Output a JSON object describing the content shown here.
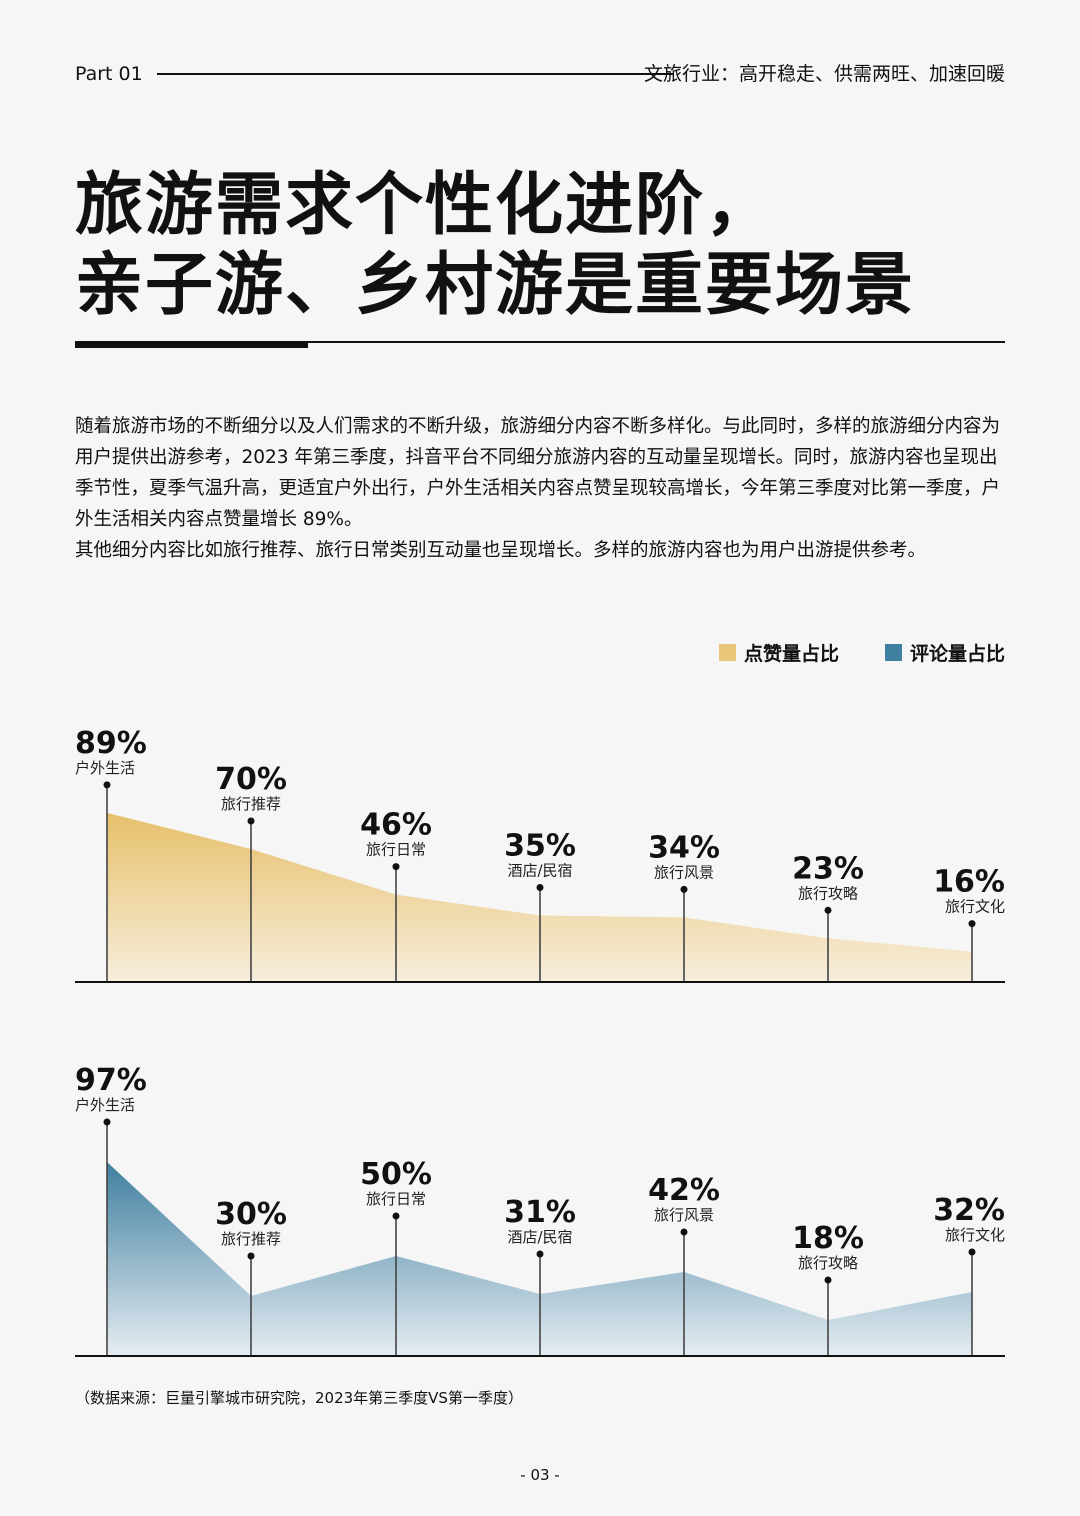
{
  "header": {
    "part": "Part 01",
    "title": "文旅行业：高开稳走、供需两旺、加速回暖"
  },
  "title_lines": [
    "旅游需求个性化进阶，",
    "亲子游、乡村游是重要场景"
  ],
  "body": {
    "paragraph1": "随着旅游市场的不断细分以及人们需求的不断升级，旅游细分内容不断多样化。与此同时，多样的旅游细分内容为用户提供出游参考，2023 年第三季度，抖音平台不同细分旅游内容的互动量呈现增长。同时，旅游内容也呈现出季节性，夏季气温升高，更适宜户外出行，户外生活相关内容点赞呈现较高增长，今年第三季度对比第一季度，户外生活相关内容点赞量增长 89%。",
    "paragraph2": "其他细分内容比如旅行推荐、旅行日常类别互动量也呈现增长。多样的旅游内容也为用户出游提供参考。"
  },
  "legend": {
    "likes": "点赞量占比",
    "comments": "评论量占比",
    "likes_color": "#e8c77a",
    "comments_color": "#3f7f9f"
  },
  "chart_data": [
    {
      "type": "area",
      "series_name": "点赞量占比",
      "color": "#e8c77a",
      "categories": [
        "户外生活",
        "旅行推荐",
        "旅行日常",
        "酒店/民宿",
        "旅行风景",
        "旅行攻略",
        "旅行文化"
      ],
      "values": [
        89,
        70,
        46,
        35,
        34,
        23,
        16
      ],
      "value_labels": [
        "89%",
        "70%",
        "46%",
        "35%",
        "34%",
        "23%",
        "16%"
      ]
    },
    {
      "type": "area",
      "series_name": "评论量占比",
      "color": "#3f7f9f",
      "categories": [
        "户外生活",
        "旅行推荐",
        "旅行日常",
        "酒店/民宿",
        "旅行风景",
        "旅行攻略",
        "旅行文化"
      ],
      "values": [
        97,
        30,
        50,
        31,
        42,
        18,
        32
      ],
      "value_labels": [
        "97%",
        "30%",
        "50%",
        "31%",
        "42%",
        "18%",
        "32%"
      ]
    }
  ],
  "source": "（数据来源：巨量引擎城市研究院，2023年第三季度VS第一季度）",
  "page_number": "- 03 -"
}
